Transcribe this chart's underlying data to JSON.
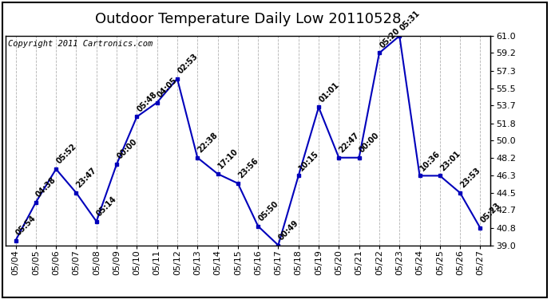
{
  "title": "Outdoor Temperature Daily Low 20110528",
  "copyright": "Copyright 2011 Cartronics.com",
  "line_color": "#0000bb",
  "marker_color": "#0000bb",
  "bg_color": "#ffffff",
  "grid_color": "#aaaaaa",
  "x_labels": [
    "05/04",
    "05/05",
    "05/06",
    "05/07",
    "05/08",
    "05/09",
    "05/10",
    "05/11",
    "05/12",
    "05/13",
    "05/14",
    "05/15",
    "05/16",
    "05/17",
    "05/18",
    "05/19",
    "05/20",
    "05/21",
    "05/22",
    "05/23",
    "05/24",
    "05/25",
    "05/26",
    "05/27"
  ],
  "y_values": [
    39.5,
    43.5,
    47.0,
    44.5,
    41.5,
    47.5,
    52.5,
    54.0,
    56.5,
    48.2,
    46.5,
    45.5,
    41.0,
    39.0,
    46.3,
    53.5,
    48.2,
    48.2,
    59.2,
    61.0,
    46.3,
    46.3,
    44.5,
    40.8
  ],
  "time_labels": [
    "05:54",
    "04:38",
    "05:52",
    "23:47",
    "05:14",
    "00:00",
    "05:48",
    "04:05",
    "02:53",
    "22:38",
    "17:10",
    "23:56",
    "05:50",
    "00:49",
    "10:15",
    "01:01",
    "22:47",
    "00:00",
    "05:20",
    "05:31",
    "10:36",
    "23:01",
    "23:53",
    "05:23"
  ],
  "ylim": [
    39.0,
    61.0
  ],
  "yticks": [
    39.0,
    40.8,
    42.7,
    44.5,
    46.3,
    48.2,
    50.0,
    51.8,
    53.7,
    55.5,
    57.3,
    59.2,
    61.0
  ],
  "title_fontsize": 13,
  "tick_fontsize": 8,
  "annot_fontsize": 7,
  "copyright_fontsize": 7.5
}
